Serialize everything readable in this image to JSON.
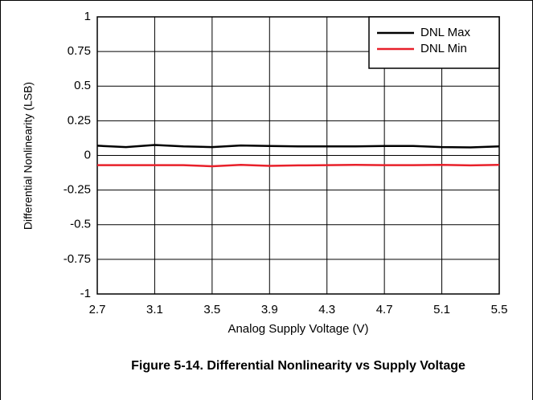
{
  "chart_data": {
    "type": "line",
    "title": "Figure 5-14. Differential Nonlinearity vs Supply Voltage",
    "x_label": "Analog Supply Voltage (V)",
    "y_label": "Differential Nonlinearity (LSB)",
    "x": [
      2.7,
      2.9,
      3.1,
      3.3,
      3.5,
      3.7,
      3.9,
      4.1,
      4.3,
      4.5,
      4.7,
      4.9,
      5.1,
      5.3,
      5.5
    ],
    "series": [
      {
        "name": "DNL Max",
        "color": "#000000",
        "values": [
          0.07,
          0.06,
          0.075,
          0.065,
          0.06,
          0.072,
          0.068,
          0.065,
          0.065,
          0.065,
          0.068,
          0.068,
          0.06,
          0.058,
          0.065
        ]
      },
      {
        "name": "DNL Min",
        "color": "#e8202a",
        "values": [
          -0.07,
          -0.07,
          -0.07,
          -0.07,
          -0.078,
          -0.068,
          -0.075,
          -0.072,
          -0.07,
          -0.068,
          -0.07,
          -0.07,
          -0.068,
          -0.072,
          -0.068
        ]
      }
    ],
    "xlim": [
      2.7,
      5.5
    ],
    "xticks": [
      2.7,
      3.1,
      3.5,
      3.9,
      4.3,
      4.7,
      5.1,
      5.5
    ],
    "ylim": [
      -1,
      1
    ],
    "yticks": [
      -1,
      -0.75,
      -0.5,
      -0.25,
      0,
      0.25,
      0.5,
      0.75,
      1
    ],
    "grid": true,
    "legend": "upper right"
  }
}
